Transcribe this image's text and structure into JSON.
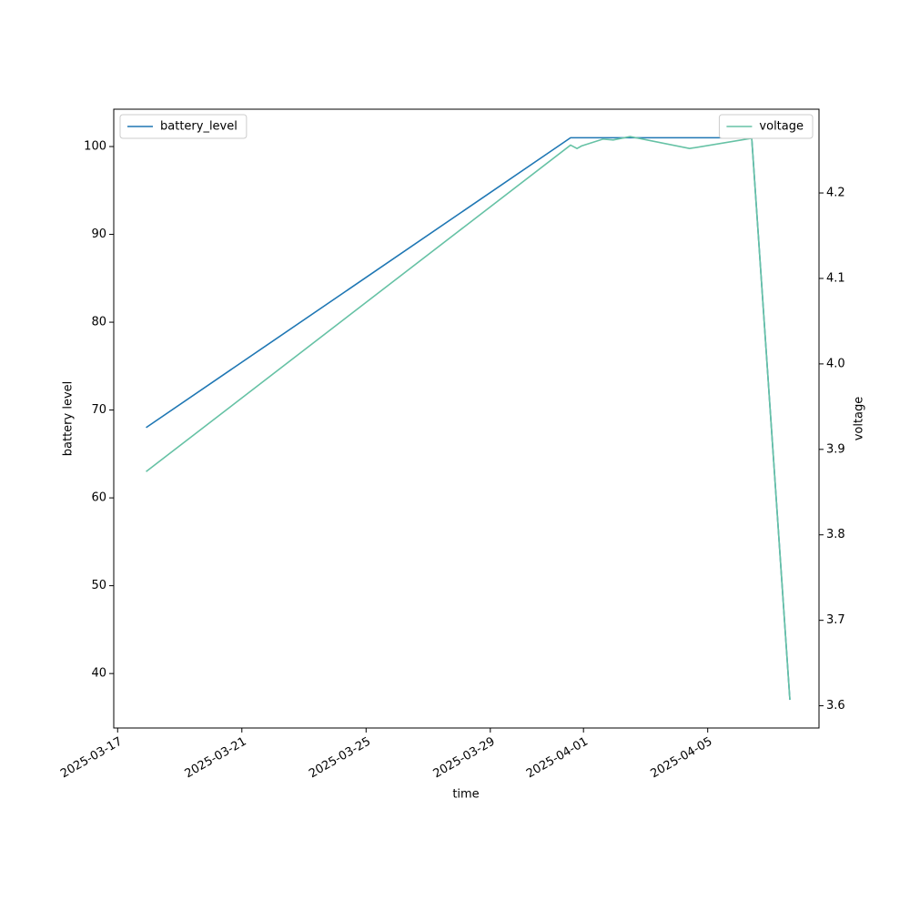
{
  "chart_data": {
    "type": "line",
    "xlabel": "time",
    "ylabel": "battery level",
    "y2label": "voltage",
    "xlim": [
      "2025-03-16T21:00",
      "2025-04-08T14:00"
    ],
    "xticks": [
      "2025-03-17",
      "2025-03-21",
      "2025-03-25",
      "2025-03-29",
      "2025-04-01",
      "2025-04-05"
    ],
    "ylim": [
      33.8,
      104.25
    ],
    "yticks": [
      40,
      50,
      60,
      70,
      80,
      90,
      100
    ],
    "y2lim": [
      3.574,
      4.298
    ],
    "y2ticks": [
      3.6,
      3.7,
      3.8,
      3.9,
      {
        "value": 4,
        "label": "4.0"
      },
      4.1,
      4.2
    ],
    "legend": [
      "upper left",
      "upper right"
    ],
    "series": [
      {
        "name": "battery_level",
        "color": "#1f77b4",
        "axis": "y",
        "x": [
          "2025-03-17T22:00",
          "2025-03-31T14:00",
          "2025-04-06T10:00",
          "2025-04-07T15:30"
        ],
        "values": [
          68,
          101,
          101,
          37
        ]
      },
      {
        "name": "voltage",
        "color": "#66c2a5",
        "axis": "y2",
        "x": [
          "2025-03-17T22:00",
          "2025-03-31T14:00",
          "2025-03-31T19:00",
          "2025-03-31T22:30",
          "2025-04-01T15:00",
          "2025-04-01T23:00",
          "2025-04-02T12:00",
          "2025-04-04T10:00",
          "2025-04-06T10:00",
          "2025-04-07T15:30"
        ],
        "values": [
          3.874,
          4.256,
          4.252,
          4.255,
          4.263,
          4.262,
          4.266,
          4.252,
          4.264,
          3.607
        ]
      }
    ]
  }
}
